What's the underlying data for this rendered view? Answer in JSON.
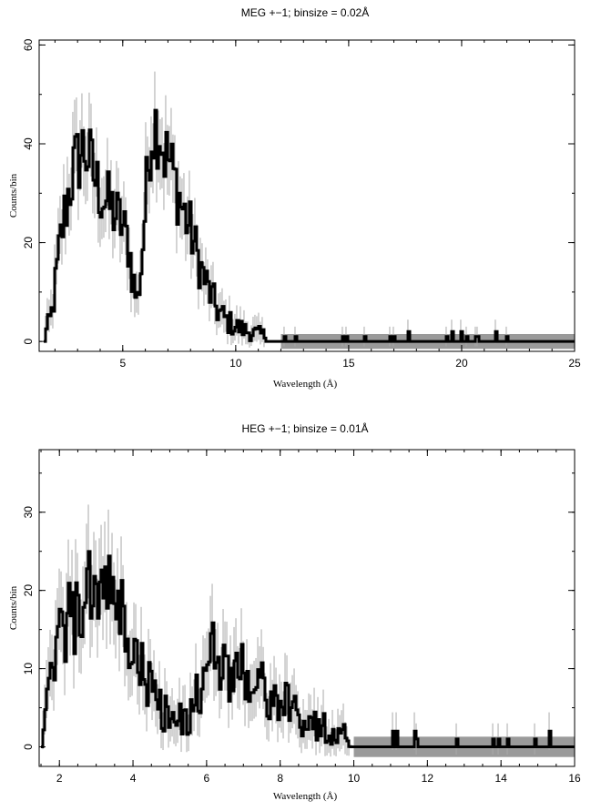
{
  "chart_data": [
    {
      "type": "line",
      "title": "MEG +−1; binsize = 0.02Å",
      "xlabel": "Wavelength (Å)",
      "ylabel": "Counts/bin",
      "xlim": [
        1.3,
        25
      ],
      "ylim": [
        -2,
        61
      ],
      "xticks": [
        5,
        10,
        15,
        20,
        25
      ],
      "yticks": [
        0,
        20,
        40,
        60
      ],
      "grid": false,
      "legend": "none",
      "series": [
        {
          "x": [
            1.5,
            1.8,
            2.0,
            2.2,
            2.4,
            2.6,
            2.8,
            3.0,
            3.2,
            3.4,
            3.6,
            3.8,
            4.0,
            4.3,
            4.6,
            4.9,
            5.2,
            5.4,
            5.6,
            5.8,
            6.0,
            6.2,
            6.4,
            6.6,
            6.8,
            7.0,
            7.3,
            7.6,
            8.0,
            8.4,
            8.8,
            9.2,
            9.6,
            10.0,
            10.5,
            11.0,
            11.5,
            12.0,
            13.0,
            14.0,
            15.0,
            17.0,
            20.0,
            23.1,
            25.0
          ],
          "y": [
            1,
            5,
            12,
            20,
            26,
            31,
            35,
            37,
            39,
            38,
            35,
            32,
            30,
            28,
            26,
            24,
            20,
            13,
            8,
            16,
            30,
            42,
            44,
            43,
            38,
            37,
            32,
            27,
            22,
            15,
            10,
            6,
            4,
            3,
            2,
            1.5,
            1,
            0.8,
            0.4,
            0.3,
            0.2,
            0.2,
            0.1,
            0.3,
            0
          ]
        }
      ],
      "error_band": 1.5
    },
    {
      "type": "line",
      "title": "HEG +−1; binsize = 0.01Å",
      "xlabel": "Wavelength (Å)",
      "ylabel": "Counts/bin",
      "xlim": [
        1.45,
        16
      ],
      "ylim": [
        -2.5,
        38
      ],
      "xticks": [
        2,
        4,
        6,
        8,
        10,
        12,
        14,
        16
      ],
      "yticks": [
        0,
        10,
        20,
        30
      ],
      "grid": false,
      "legend": "none",
      "series": [
        {
          "x": [
            1.5,
            1.7,
            1.9,
            2.1,
            2.3,
            2.5,
            2.7,
            2.9,
            3.1,
            3.3,
            3.5,
            3.7,
            3.9,
            4.1,
            4.3,
            4.6,
            4.9,
            5.2,
            5.5,
            5.8,
            6.0,
            6.2,
            6.4,
            6.6,
            6.8,
            7.0,
            7.3,
            7.6,
            7.9,
            8.2,
            8.5,
            8.8,
            9.1,
            9.4,
            9.7,
            10.0,
            10.5,
            11.0,
            11.5,
            12.0,
            12.7,
            13.5,
            16.0
          ],
          "y": [
            1,
            6,
            13,
            16,
            16,
            17,
            19,
            20,
            21,
            20,
            18,
            16,
            13,
            11,
            9,
            6,
            4,
            3,
            4,
            7,
            9,
            13,
            11,
            9,
            10,
            10,
            8,
            7,
            6,
            5,
            4,
            3,
            2.5,
            2,
            1.5,
            1,
            0.8,
            0.6,
            0.4,
            0.3,
            0.2,
            0.1,
            0
          ]
        }
      ],
      "error_band": 1.3
    }
  ]
}
